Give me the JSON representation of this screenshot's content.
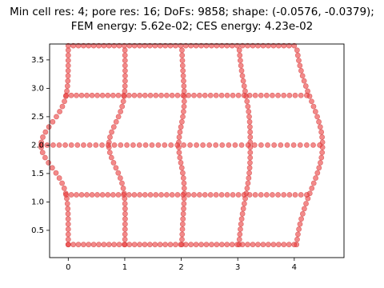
{
  "chart_data": {
    "type": "mesh",
    "title": [
      "Min cell res: 4; pore res: 16; DoFs: 9858; shape: (-0.0576, -0.0379);",
      "FEM energy: 5.62e-02; CES energy: 4.23e-02"
    ],
    "xlim": [
      -0.33,
      4.88
    ],
    "ylim": [
      0.02,
      3.78
    ],
    "xticks": [
      0,
      1,
      2,
      3,
      4
    ],
    "yticks": [
      0.5,
      {
        "value": 1,
        "label": "1.0"
      },
      1.5,
      {
        "value": 2,
        "label": "2.0"
      },
      2.5,
      {
        "value": 3,
        "label": "3.0"
      },
      3.5
    ]
  }
}
